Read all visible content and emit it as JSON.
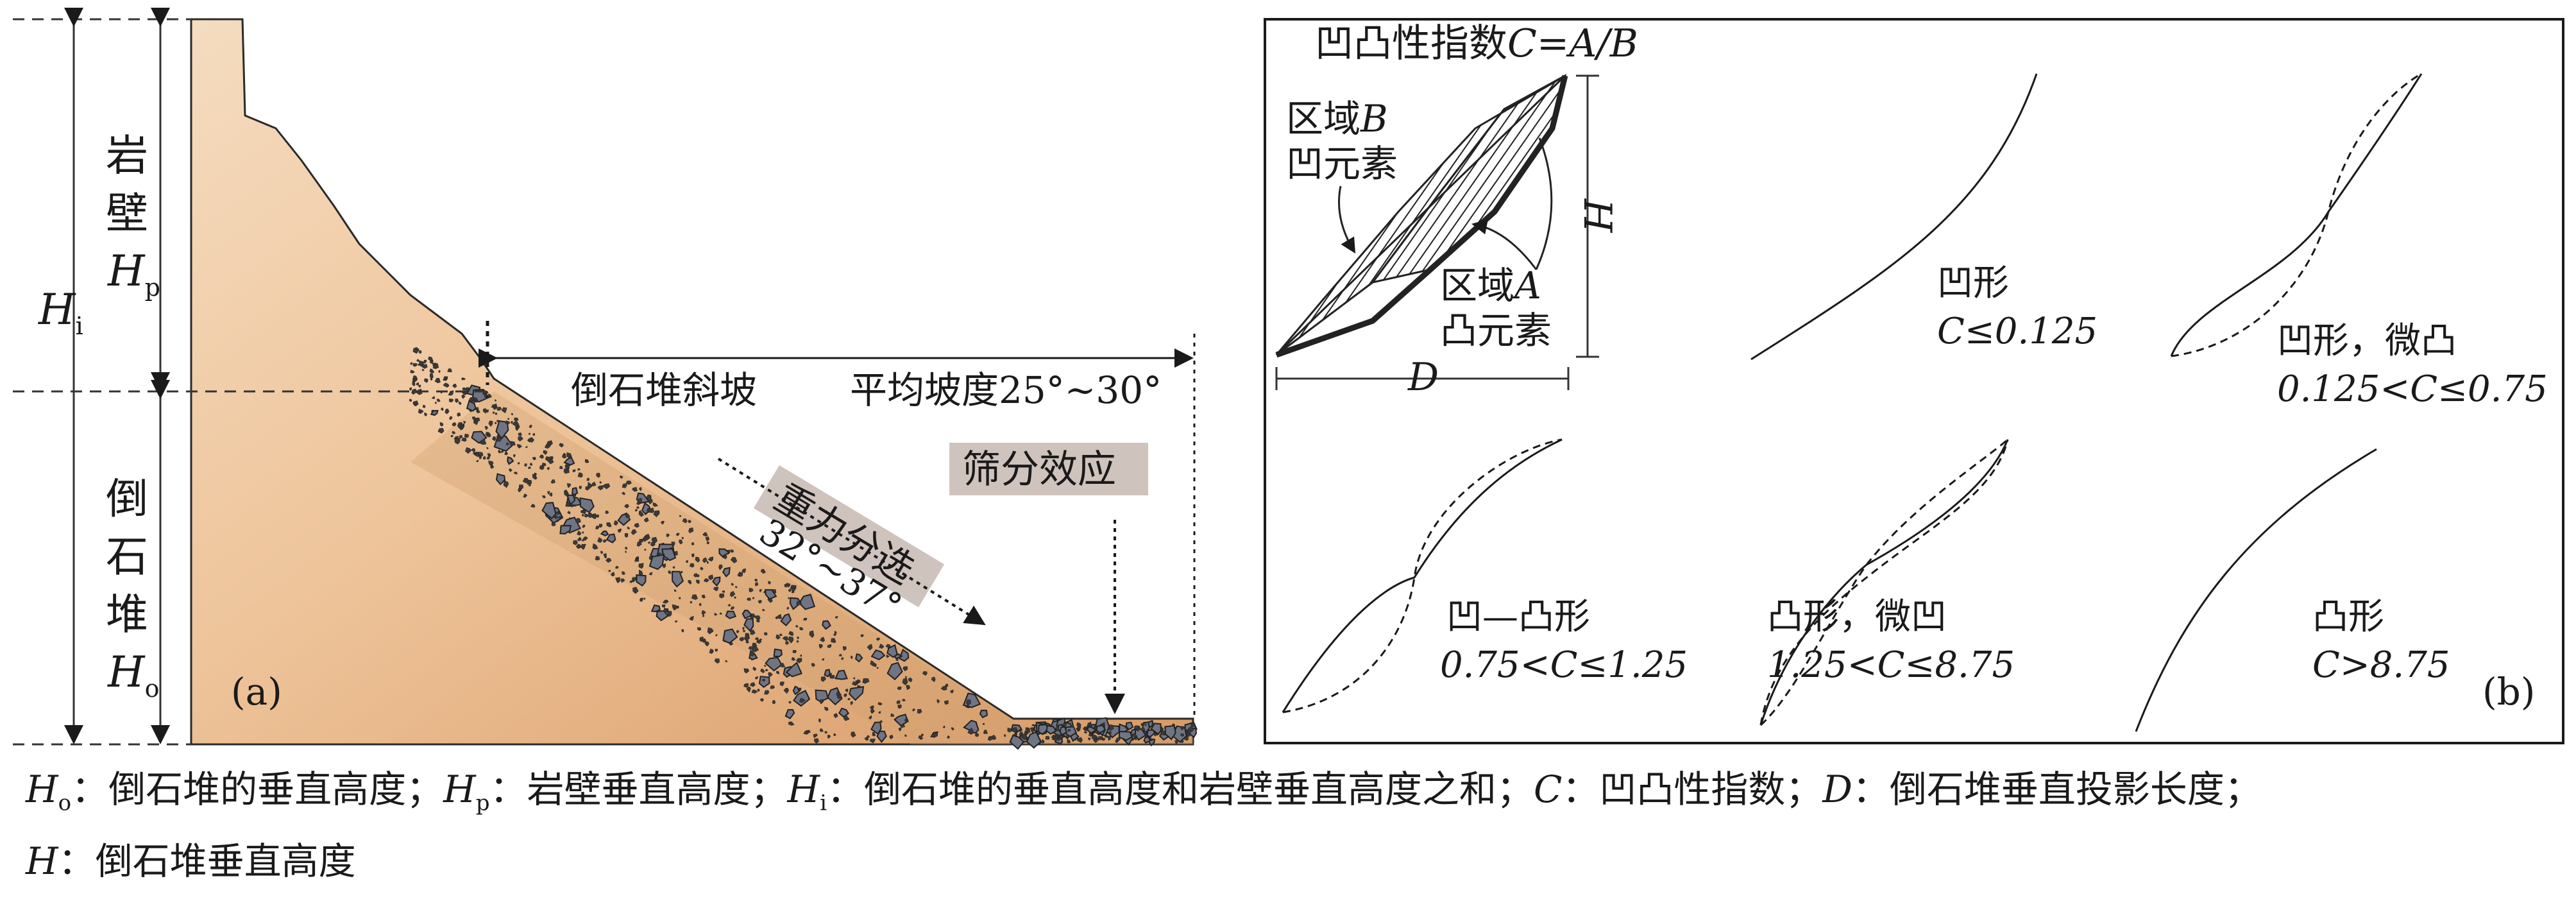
{
  "panel_a": {
    "label": "(a)",
    "h_i": {
      "sym": "H",
      "sub": "i"
    },
    "rock_wall": {
      "line1": "岩",
      "line2": "壁",
      "sym": "H",
      "sub": "p"
    },
    "talus": {
      "line1": "倒",
      "line2": "石",
      "line3": "堆",
      "sym": "H",
      "sub": "o"
    },
    "talus_slope": "倒石堆斜坡",
    "avg_slope": "平均坡度25°~30°",
    "gravity_sorting": "重力分选",
    "slope_angle": "32°~37°",
    "sieve_effect": "筛分效应"
  },
  "panel_b": {
    "label": "(b)",
    "index_title": "凹凸性指数",
    "index_formula": "C=A/B",
    "region_b": {
      "line1": "区域",
      "sym": "B",
      "line2": "凹元素"
    },
    "region_a": {
      "line1": "区域",
      "sym": "A",
      "line2": "凸元素"
    },
    "h_label": "H",
    "d_label": "D",
    "concave": {
      "name": "凹形",
      "cond": "C≤0.125"
    },
    "concave_slightly_convex": {
      "name": "凹形，微凸",
      "cond": "0.125<C≤0.75"
    },
    "concave_convex": {
      "name": "凹—凸形",
      "cond": "0.75<C≤1.25"
    },
    "convex_slightly_concave": {
      "name": "凸形，微凹",
      "cond": "1.25<C≤8.75"
    },
    "convex": {
      "name": "凸形",
      "cond": "C>8.75"
    }
  },
  "caption": {
    "line1": [
      {
        "sym": "H",
        "sub": "o",
        "text": "：倒石堆的垂直高度；"
      },
      {
        "sym": "H",
        "sub": "p",
        "text": "：岩壁垂直高度；"
      },
      {
        "sym": "H",
        "sub": "i",
        "text": "：倒石堆的垂直高度和岩壁垂直高度之和；"
      },
      {
        "sym": "C",
        "sub": "",
        "text": "：凹凸性指数；"
      },
      {
        "sym": "D",
        "sub": "",
        "text": "：倒石堆垂直投影长度；"
      }
    ],
    "line2": [
      {
        "sym": "H",
        "sub": "",
        "text": "：倒石堆垂直高度"
      }
    ]
  },
  "colors": {
    "rock_light": "#f2d2b0",
    "rock_dark": "#d9a06c",
    "gravel_dark": "#3a3a3a",
    "boulder_gray": "#6f7585",
    "label_box": "#cfc3bd"
  }
}
